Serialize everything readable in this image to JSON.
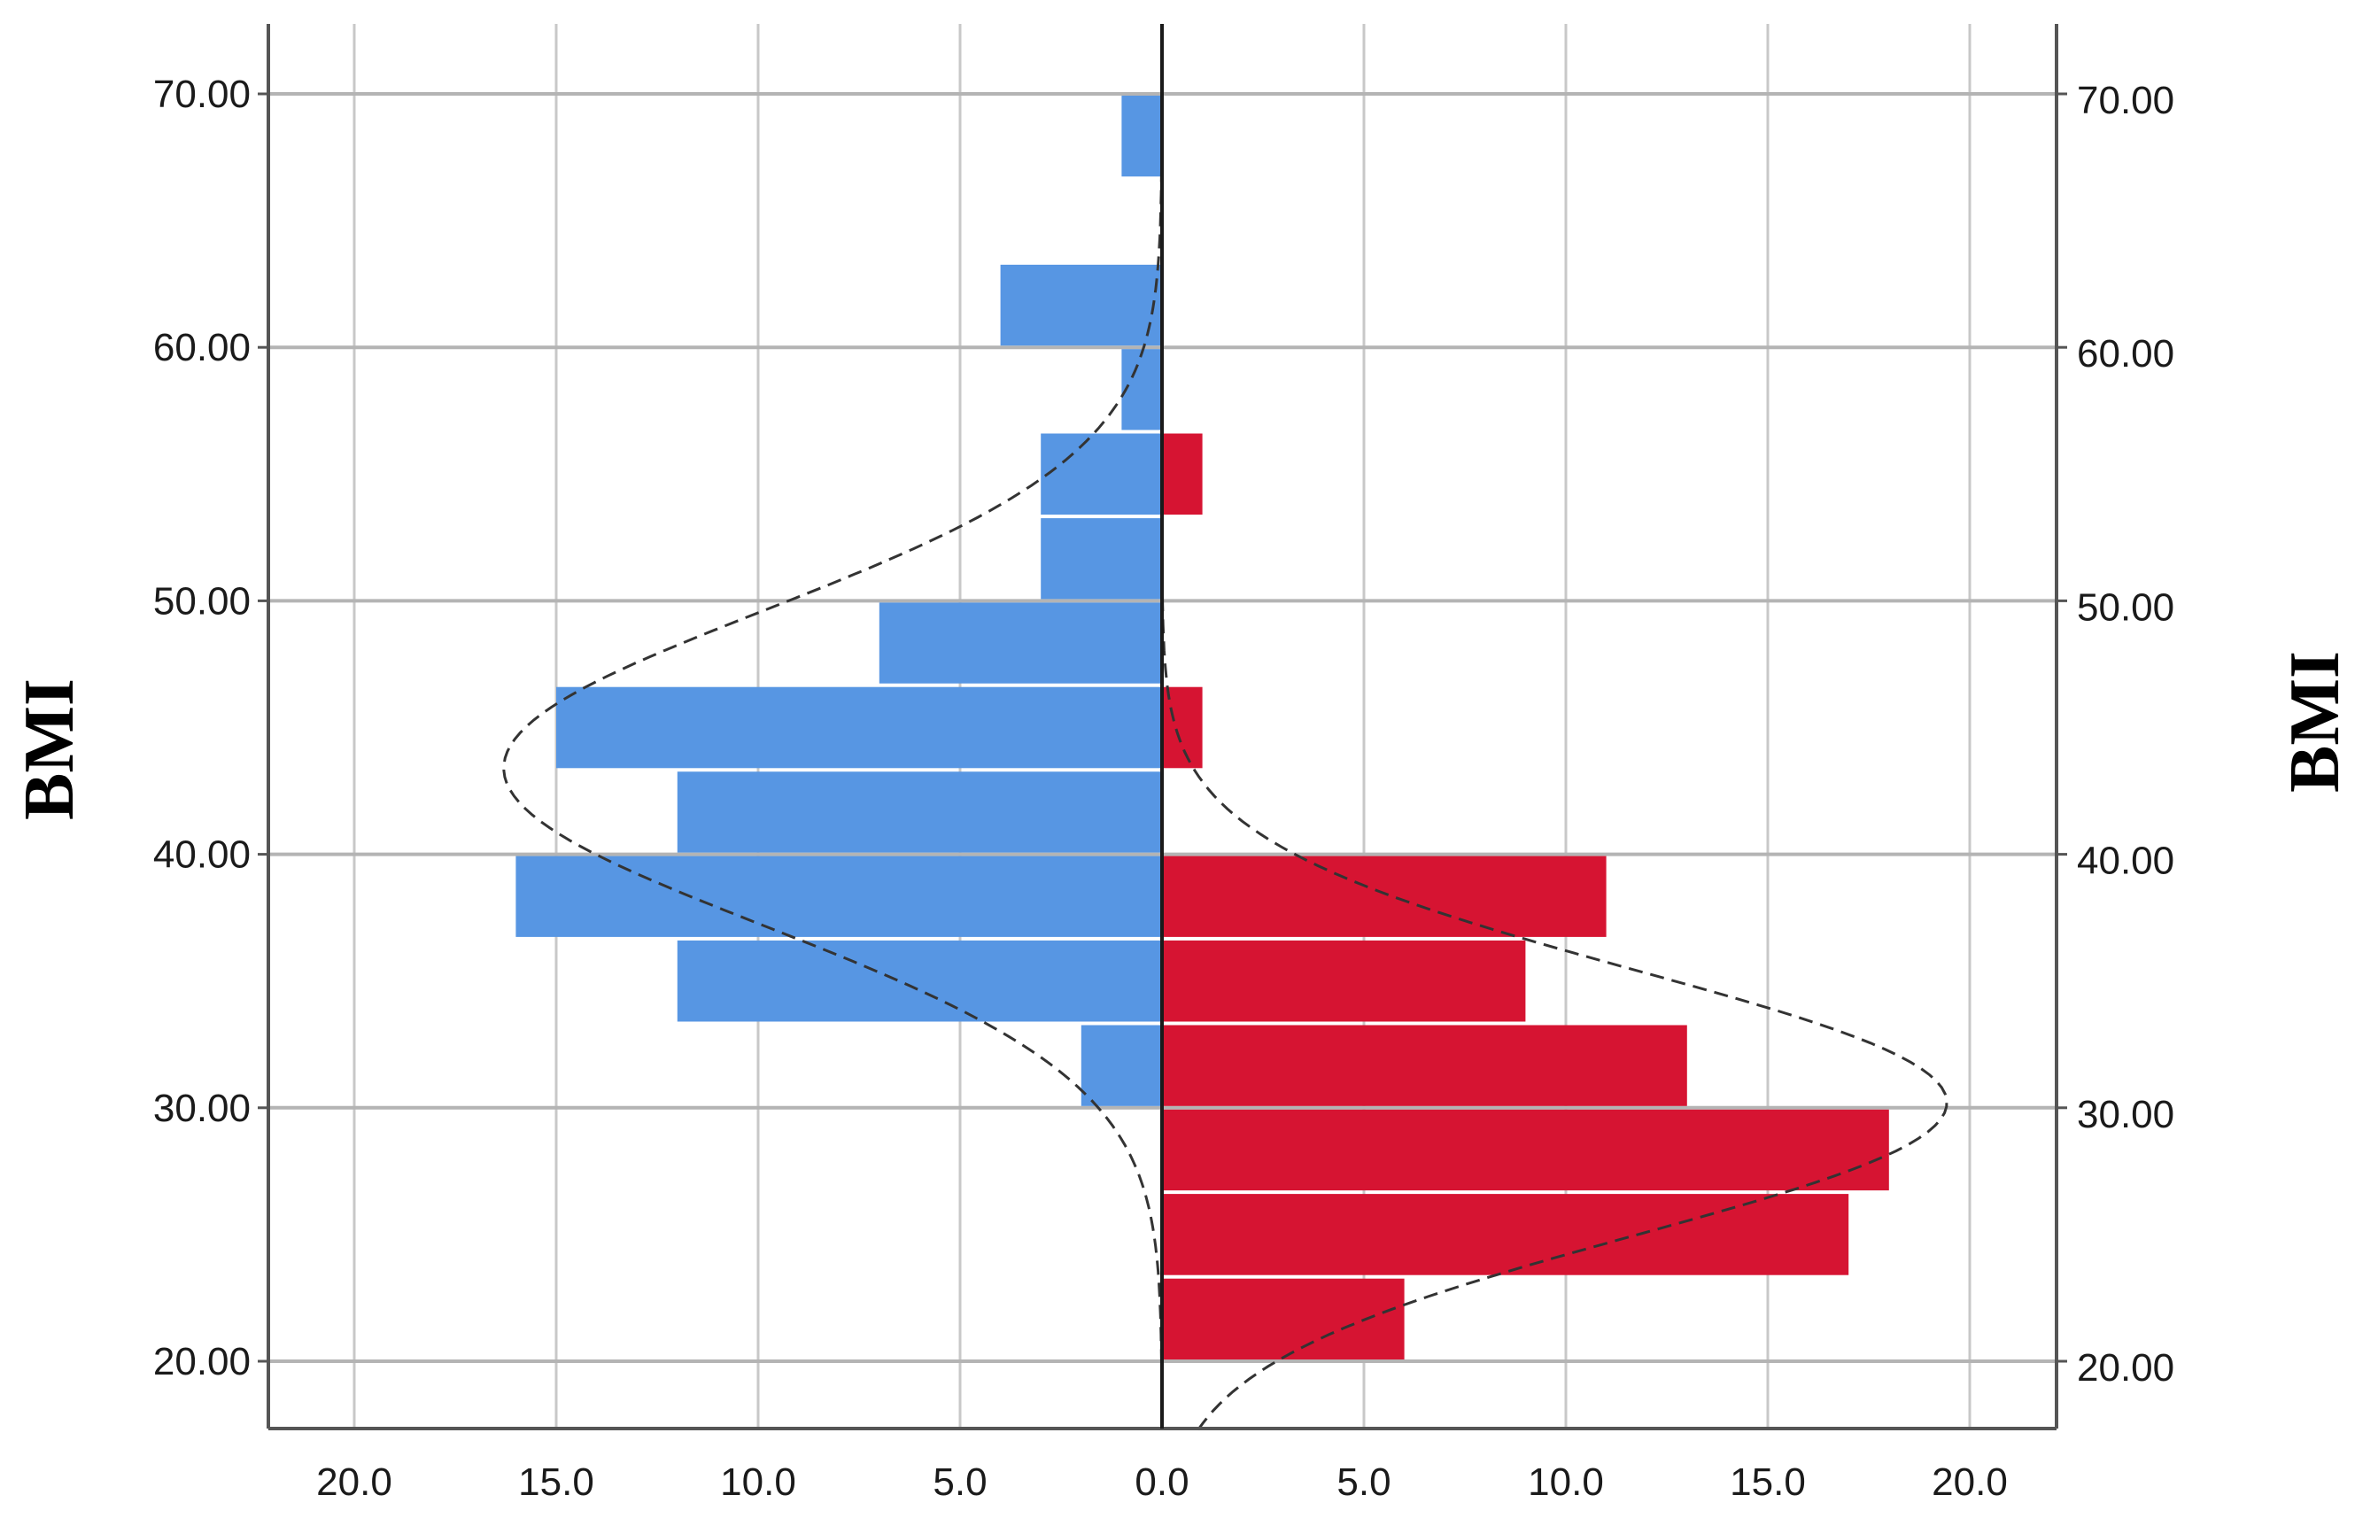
{
  "chart_data": {
    "type": "bar",
    "orientation": "horizontal",
    "layout": "back-to-back histogram",
    "y_axis": {
      "label_left": "BMI",
      "label_right": "BMI",
      "ticks": [
        "20.00",
        "30.00",
        "40.00",
        "50.00",
        "60.00",
        "70.00"
      ],
      "range": [
        17.3,
        72.8
      ],
      "bin_width": 3.333
    },
    "x_axis": {
      "ticks_left": [
        "20.0",
        "15.0",
        "10.0",
        "5.0"
      ],
      "tick_center": "0.0",
      "ticks_right": [
        "5.0",
        "10.0",
        "15.0",
        "20.0"
      ],
      "range": [
        -22.2,
        22.2
      ]
    },
    "grid": true,
    "series": [
      {
        "side": "left",
        "color": "#5796E3",
        "bins": [
          {
            "from": 30.0,
            "to": 33.33,
            "value": 2
          },
          {
            "from": 33.33,
            "to": 36.67,
            "value": 12
          },
          {
            "from": 36.67,
            "to": 40.0,
            "value": 16
          },
          {
            "from": 40.0,
            "to": 43.33,
            "value": 12
          },
          {
            "from": 43.33,
            "to": 46.67,
            "value": 15
          },
          {
            "from": 46.67,
            "to": 50.0,
            "value": 7
          },
          {
            "from": 50.0,
            "to": 53.33,
            "value": 3
          },
          {
            "from": 53.33,
            "to": 56.67,
            "value": 3
          },
          {
            "from": 56.67,
            "to": 60.0,
            "value": 1
          },
          {
            "from": 60.0,
            "to": 63.33,
            "value": 4
          },
          {
            "from": 66.67,
            "to": 70.0,
            "value": 1
          }
        ],
        "normal_curve": {
          "mean": 43.4,
          "sd": 6.2,
          "n": 76
        }
      },
      {
        "side": "right",
        "color": "#D61432",
        "bins": [
          {
            "from": 20.0,
            "to": 23.33,
            "value": 6
          },
          {
            "from": 23.33,
            "to": 26.67,
            "value": 17
          },
          {
            "from": 26.67,
            "to": 30.0,
            "value": 18
          },
          {
            "from": 30.0,
            "to": 33.33,
            "value": 13
          },
          {
            "from": 33.33,
            "to": 36.67,
            "value": 9
          },
          {
            "from": 36.67,
            "to": 40.0,
            "value": 11
          },
          {
            "from": 43.33,
            "to": 46.67,
            "value": 1
          },
          {
            "from": 53.33,
            "to": 56.67,
            "value": 1
          }
        ],
        "normal_curve": {
          "mean": 30.2,
          "sd": 5.2,
          "n": 76
        }
      }
    ],
    "colors": {
      "grid": "#C8C8C8",
      "axis": "#555555",
      "center_line": "#1a1a1a",
      "curve": "#333333"
    }
  }
}
